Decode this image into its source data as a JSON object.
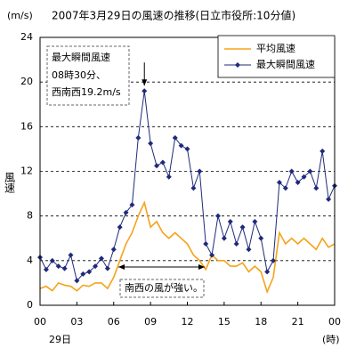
{
  "chart_data": {
    "type": "line",
    "title": "2007年3月29日の風速の推移(日立市役所:10分値)",
    "y_unit": "(m/s)",
    "y_label": "風速",
    "x_date": "29日",
    "x_unit": "(時)",
    "x": [
      0,
      0.5,
      1,
      1.5,
      2,
      2.5,
      3,
      3.5,
      4,
      4.5,
      5,
      5.5,
      6,
      6.5,
      7,
      7.5,
      8,
      8.5,
      9,
      9.5,
      10,
      10.5,
      11,
      11.5,
      12,
      12.5,
      13,
      13.5,
      14,
      14.5,
      15,
      15.5,
      16,
      16.5,
      17,
      17.5,
      18,
      18.5,
      19,
      19.5,
      20,
      20.5,
      21,
      21.5,
      22,
      22.5,
      23,
      23.5,
      24
    ],
    "series": [
      {
        "name": "平均風速",
        "color": "#f5a31a",
        "marker": false,
        "values": [
          1.5,
          1.7,
          1.3,
          2.0,
          1.8,
          1.7,
          1.3,
          1.8,
          1.7,
          2.0,
          2.0,
          1.5,
          2.5,
          4.0,
          5.5,
          6.5,
          8.0,
          9.2,
          7.0,
          7.5,
          6.5,
          6.0,
          6.5,
          6.0,
          5.5,
          4.5,
          4.0,
          3.2,
          4.5,
          4.0,
          4.0,
          3.5,
          3.5,
          3.8,
          3.0,
          3.5,
          3.0,
          1.2,
          2.5,
          6.5,
          5.5,
          6.0,
          5.5,
          6.0,
          5.5,
          5.0,
          6.0,
          5.2,
          5.5
        ]
      },
      {
        "name": "最大瞬間風速",
        "color": "#1f2a7a",
        "marker": true,
        "values": [
          4.3,
          3.2,
          4.0,
          3.5,
          3.3,
          4.5,
          2.2,
          2.8,
          3.0,
          3.5,
          4.2,
          3.3,
          5.0,
          7.0,
          8.3,
          9.0,
          15.0,
          19.2,
          14.5,
          12.5,
          12.8,
          11.5,
          15.0,
          14.3,
          14.0,
          10.5,
          12.0,
          5.5,
          4.5,
          8.0,
          6.0,
          7.5,
          5.5,
          7.0,
          5.0,
          7.5,
          6.0,
          3.0,
          4.0,
          11.0,
          10.5,
          12.0,
          11.0,
          11.5,
          12.0,
          10.5,
          13.8,
          9.5,
          10.7
        ]
      }
    ],
    "xlim": [
      0,
      24
    ],
    "xticks": [
      {
        "value": 0,
        "label": "00"
      },
      {
        "value": 3,
        "label": "03"
      },
      {
        "value": 6,
        "label": "06"
      },
      {
        "value": 9,
        "label": "09"
      },
      12,
      15,
      18,
      21,
      {
        "value": 24,
        "label": "00"
      }
    ],
    "ylim": [
      0,
      24
    ],
    "yticks": [
      0,
      4,
      8,
      12,
      16,
      20,
      24
    ],
    "grid": true,
    "annotations": [
      {
        "text": [
          "最大瞬間風速",
          "08時30分、",
          "西南西19.2m/s"
        ]
      },
      {
        "text": [
          "南西の風が強い。"
        ]
      }
    ]
  }
}
